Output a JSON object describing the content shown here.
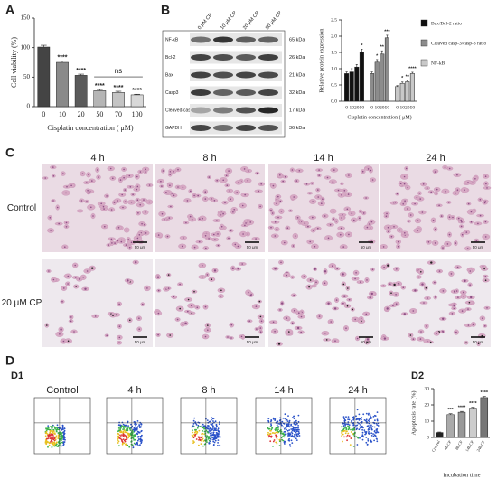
{
  "panel_labels": {
    "a": "A",
    "b": "B",
    "c": "C",
    "d": "D",
    "d1": "D1",
    "d2": "D2"
  },
  "chart_data": [
    {
      "type": "bar",
      "ylabel": "Cell viability (%)",
      "xlabel": "Cisplatin concentration ( μM)",
      "categories": [
        "0",
        "10",
        "20",
        "50",
        "70",
        "100"
      ],
      "values": [
        101,
        75,
        53,
        27,
        24,
        20
      ],
      "errors": [
        3,
        2,
        2,
        2,
        2,
        1
      ],
      "colors": [
        "#444444",
        "#8a8a8a",
        "#5a5a5a",
        "#b5b5b5",
        "#c4c4c4",
        "#d8d8d8"
      ],
      "ylim": [
        0,
        150
      ],
      "yticks": [
        0,
        50,
        100,
        150
      ],
      "significance": [
        null,
        "****",
        "****",
        "****",
        "****",
        "****"
      ],
      "bracket_label": "ns"
    },
    {
      "type": "grouped_bar",
      "ylabel": "Relative protein expression",
      "xlabel": "Cisplatin concentration ( μM)",
      "categories": [
        "0",
        "10",
        "20",
        "50"
      ],
      "series": [
        {
          "name": "Bax/Bcl-2 ratio",
          "color": "#111111",
          "values": [
            0.85,
            0.9,
            1.05,
            1.5
          ],
          "errors": [
            0.05,
            0.1,
            0.08,
            0.1
          ],
          "significance": [
            null,
            null,
            null,
            "*"
          ]
        },
        {
          "name": "Cleaved casp-3/casp-3 ratio",
          "color": "#8c8c8c",
          "values": [
            0.85,
            1.2,
            1.45,
            1.95
          ],
          "errors": [
            0.05,
            0.08,
            0.1,
            0.08
          ],
          "significance": [
            null,
            "*",
            "**",
            "***"
          ]
        },
        {
          "name": "NF-kB",
          "color": "#c8c8c8",
          "values": [
            0.45,
            0.55,
            0.6,
            0.85
          ],
          "errors": [
            0.03,
            0.04,
            0.04,
            0.04
          ],
          "significance": [
            null,
            "*",
            "**",
            "****"
          ]
        }
      ],
      "ylim": [
        0,
        2.5
      ],
      "yticks": [
        {
          "value": 0,
          "label": "0.0"
        },
        0.5,
        {
          "value": 1,
          "label": "1.0"
        },
        1.5,
        {
          "value": 2,
          "label": "2.0"
        },
        2.5
      ]
    },
    {
      "type": "bar",
      "ylabel": "Apoptosis rate (%)",
      "xlabel": "Incubation time",
      "categories": [
        "Control",
        "4h CP",
        "8h CP",
        "14h CP",
        "24h CP"
      ],
      "values": [
        3,
        14,
        15.5,
        18,
        24.5
      ],
      "errors": [
        0.3,
        0.6,
        0.5,
        0.5,
        0.7
      ],
      "colors": [
        "#222222",
        "#aaaaaa",
        "#999999",
        "#cccccc",
        "#777777"
      ],
      "ylim": [
        0,
        30
      ],
      "yticks": [
        0,
        10,
        20,
        30
      ],
      "significance": [
        null,
        "***",
        "****",
        "****",
        "****"
      ]
    }
  ],
  "blot": {
    "columns": [
      "0 μM CP",
      "10 μM CP",
      "20 μM CP",
      "50 μM CP"
    ],
    "rows": [
      {
        "label": "NF-κB",
        "kda": "65 kDa"
      },
      {
        "label": "Bcl-2",
        "kda": "26 kDa"
      },
      {
        "label": "Bax",
        "kda": "21 kDa"
      },
      {
        "label": "Casp3",
        "kda": "32 kDa"
      },
      {
        "label": "Cleaved-casp3",
        "kda": "17 kDa"
      },
      {
        "label": "GAPDH",
        "kda": "36 kDa"
      }
    ]
  },
  "microscopy": {
    "columns": [
      "4 h",
      "8 h",
      "14 h",
      "24 h"
    ],
    "rows": [
      "Control",
      "20 μM CP"
    ],
    "scale_bar": "50 μm"
  },
  "flow": {
    "titles": [
      "Control",
      "4 h",
      "8 h",
      "14 h",
      "24 h"
    ]
  }
}
